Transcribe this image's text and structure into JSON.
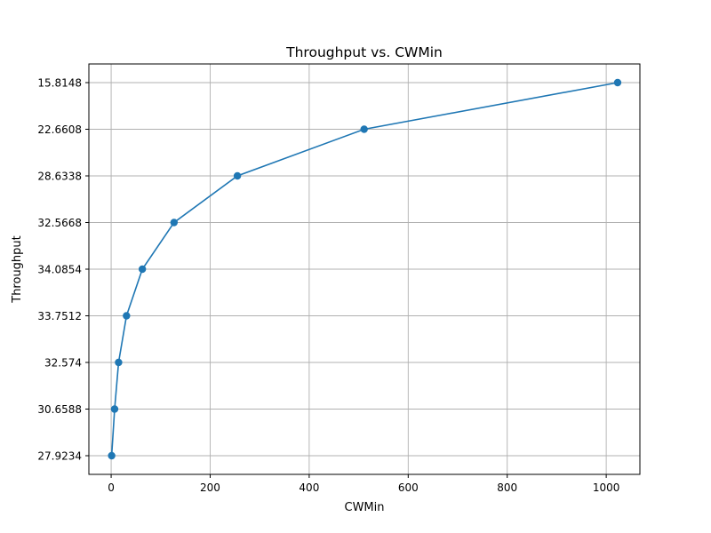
{
  "chart_data": {
    "type": "line",
    "title": "Throughput vs. CWMin",
    "xlabel": "CWMin",
    "ylabel": "Throughput",
    "grid": true,
    "marker": "circle",
    "color": "#1f77b4",
    "x_ticks": [
      0,
      200,
      400,
      600,
      800,
      1000
    ],
    "xlim": [
      -45,
      1068
    ],
    "y_axis_type": "categorical",
    "y_categories_bottom_to_top": [
      "27.9234",
      "30.6588",
      "32.574",
      "33.7512",
      "34.0854",
      "32.5668",
      "28.6338",
      "22.6608",
      "15.8148"
    ],
    "series": [
      {
        "x": [
          1,
          7,
          15,
          31,
          63,
          127,
          255,
          511,
          1023
        ],
        "y": [
          "27.9234",
          "30.6588",
          "32.574",
          "33.7512",
          "34.0854",
          "32.5668",
          "28.6338",
          "22.6608",
          "15.8148"
        ]
      }
    ]
  }
}
